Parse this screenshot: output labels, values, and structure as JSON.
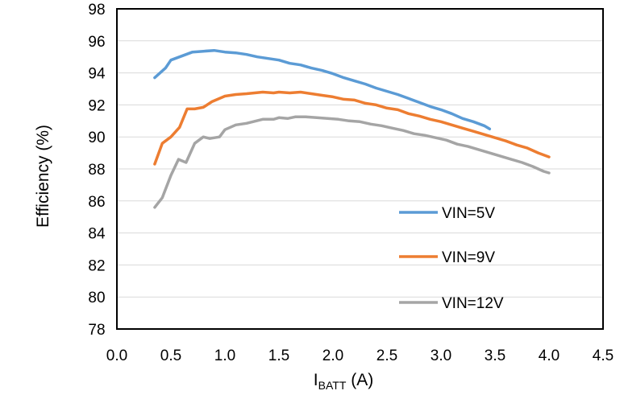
{
  "chart_data": {
    "type": "line",
    "title": "",
    "xlabel": {
      "main": "I",
      "sub": "BATT",
      "rest": " (A)"
    },
    "ylabel": "Efficiency (%)",
    "xlim": [
      0.0,
      4.5
    ],
    "ylim": [
      78,
      98
    ],
    "x_ticks": [
      "0.0",
      "0.5",
      "1.0",
      "1.5",
      "2.0",
      "2.5",
      "3.0",
      "3.5",
      "4.0",
      "4.5"
    ],
    "y_ticks": [
      "78",
      "80",
      "82",
      "84",
      "86",
      "88",
      "90",
      "92",
      "94",
      "96",
      "98"
    ],
    "grid": "horizontal",
    "legend_position": "bottom-right inside",
    "series": [
      {
        "name": "VIN=5V",
        "color": "#5b9bd5",
        "points": [
          [
            0.35,
            93.7
          ],
          [
            0.45,
            94.3
          ],
          [
            0.5,
            94.8
          ],
          [
            0.6,
            95.05
          ],
          [
            0.7,
            95.3
          ],
          [
            0.8,
            95.35
          ],
          [
            0.9,
            95.4
          ],
          [
            1.0,
            95.3
          ],
          [
            1.1,
            95.25
          ],
          [
            1.2,
            95.15
          ],
          [
            1.3,
            95.0
          ],
          [
            1.4,
            94.9
          ],
          [
            1.5,
            94.8
          ],
          [
            1.6,
            94.6
          ],
          [
            1.7,
            94.5
          ],
          [
            1.8,
            94.3
          ],
          [
            1.9,
            94.15
          ],
          [
            2.0,
            93.95
          ],
          [
            2.1,
            93.7
          ],
          [
            2.2,
            93.5
          ],
          [
            2.3,
            93.3
          ],
          [
            2.4,
            93.05
          ],
          [
            2.5,
            92.85
          ],
          [
            2.6,
            92.65
          ],
          [
            2.7,
            92.4
          ],
          [
            2.8,
            92.15
          ],
          [
            2.9,
            91.9
          ],
          [
            3.0,
            91.7
          ],
          [
            3.1,
            91.45
          ],
          [
            3.2,
            91.15
          ],
          [
            3.3,
            90.95
          ],
          [
            3.4,
            90.7
          ],
          [
            3.45,
            90.5
          ]
        ]
      },
      {
        "name": "VIN=9V",
        "color": "#ed7d31",
        "points": [
          [
            0.35,
            88.3
          ],
          [
            0.42,
            89.6
          ],
          [
            0.5,
            90.0
          ],
          [
            0.58,
            90.6
          ],
          [
            0.65,
            91.75
          ],
          [
            0.72,
            91.75
          ],
          [
            0.8,
            91.85
          ],
          [
            0.88,
            92.2
          ],
          [
            1.0,
            92.55
          ],
          [
            1.1,
            92.65
          ],
          [
            1.2,
            92.7
          ],
          [
            1.35,
            92.8
          ],
          [
            1.45,
            92.75
          ],
          [
            1.5,
            92.8
          ],
          [
            1.6,
            92.75
          ],
          [
            1.7,
            92.8
          ],
          [
            1.8,
            92.7
          ],
          [
            1.9,
            92.6
          ],
          [
            2.0,
            92.5
          ],
          [
            2.1,
            92.35
          ],
          [
            2.2,
            92.3
          ],
          [
            2.3,
            92.1
          ],
          [
            2.4,
            92.0
          ],
          [
            2.5,
            91.8
          ],
          [
            2.6,
            91.7
          ],
          [
            2.7,
            91.45
          ],
          [
            2.8,
            91.3
          ],
          [
            2.9,
            91.1
          ],
          [
            3.0,
            90.95
          ],
          [
            3.1,
            90.75
          ],
          [
            3.2,
            90.55
          ],
          [
            3.3,
            90.35
          ],
          [
            3.4,
            90.15
          ],
          [
            3.5,
            89.95
          ],
          [
            3.6,
            89.75
          ],
          [
            3.7,
            89.5
          ],
          [
            3.8,
            89.3
          ],
          [
            3.9,
            89.0
          ],
          [
            4.0,
            88.75
          ]
        ]
      },
      {
        "name": "VIN=12V",
        "color": "#a5a5a5",
        "points": [
          [
            0.35,
            85.6
          ],
          [
            0.42,
            86.2
          ],
          [
            0.5,
            87.6
          ],
          [
            0.57,
            88.6
          ],
          [
            0.64,
            88.4
          ],
          [
            0.72,
            89.6
          ],
          [
            0.8,
            90.0
          ],
          [
            0.86,
            89.9
          ],
          [
            0.95,
            90.0
          ],
          [
            1.0,
            90.45
          ],
          [
            1.1,
            90.75
          ],
          [
            1.2,
            90.85
          ],
          [
            1.35,
            91.1
          ],
          [
            1.45,
            91.1
          ],
          [
            1.5,
            91.2
          ],
          [
            1.58,
            91.15
          ],
          [
            1.65,
            91.25
          ],
          [
            1.75,
            91.25
          ],
          [
            1.85,
            91.2
          ],
          [
            1.95,
            91.15
          ],
          [
            2.05,
            91.1
          ],
          [
            2.15,
            91.0
          ],
          [
            2.25,
            90.95
          ],
          [
            2.35,
            90.8
          ],
          [
            2.45,
            90.7
          ],
          [
            2.55,
            90.55
          ],
          [
            2.65,
            90.4
          ],
          [
            2.75,
            90.2
          ],
          [
            2.85,
            90.1
          ],
          [
            2.95,
            89.95
          ],
          [
            3.05,
            89.8
          ],
          [
            3.15,
            89.55
          ],
          [
            3.25,
            89.4
          ],
          [
            3.35,
            89.2
          ],
          [
            3.45,
            89.0
          ],
          [
            3.55,
            88.8
          ],
          [
            3.65,
            88.6
          ],
          [
            3.75,
            88.4
          ],
          [
            3.85,
            88.15
          ],
          [
            3.95,
            87.85
          ],
          [
            4.0,
            87.75
          ]
        ]
      }
    ]
  }
}
